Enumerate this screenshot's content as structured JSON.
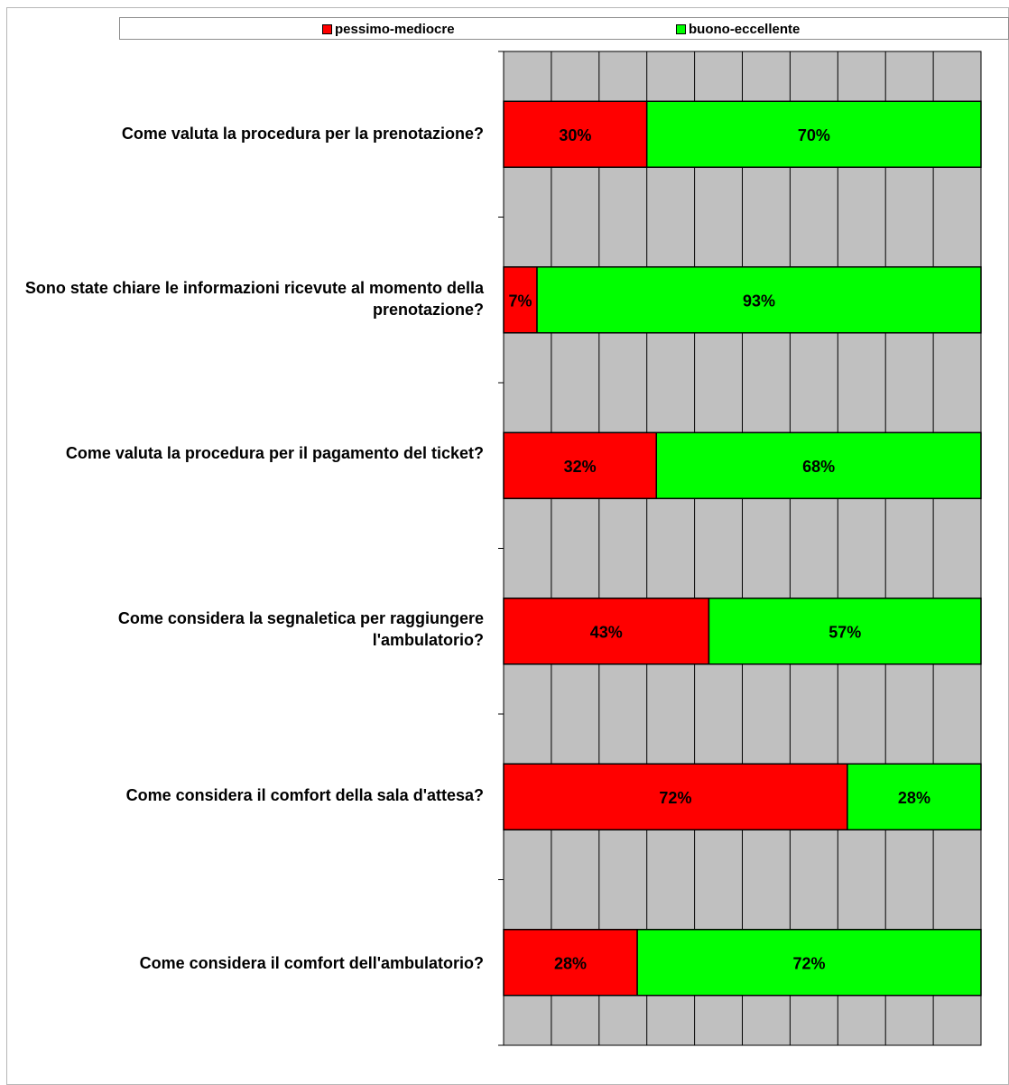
{
  "chart_data": {
    "type": "bar",
    "orientation": "horizontal",
    "stacked": "percent",
    "categories": [
      "Come valuta la procedura per la prenotazione?",
      "Sono state chiare le informazioni ricevute al momento della prenotazione?",
      "Come valuta la procedura per il pagamento del ticket?",
      "Come considera la segnaletica per raggiungere l'ambulatorio?",
      "Come considera il comfort della sala d'attesa?",
      "Come considera il comfort dell'ambulatorio?"
    ],
    "series": [
      {
        "name": "pessimo-mediocre",
        "color": "#ff0000",
        "values": [
          30,
          7,
          32,
          43,
          72,
          28
        ],
        "labels": [
          "30%",
          "7%",
          "32%",
          "43%",
          "72%",
          "28%"
        ]
      },
      {
        "name": "buono-eccellente",
        "color": "#00ff00",
        "values": [
          70,
          93,
          68,
          57,
          28,
          72
        ],
        "labels": [
          "70%",
          "93%",
          "68%",
          "57%",
          "28%",
          "72%"
        ]
      }
    ],
    "xlim": [
      0,
      100
    ],
    "x_gridlines": 10,
    "grid": true,
    "plot_background": "#c0c0c0",
    "legend_position": "top",
    "title": "",
    "xlabel": "",
    "ylabel": ""
  }
}
